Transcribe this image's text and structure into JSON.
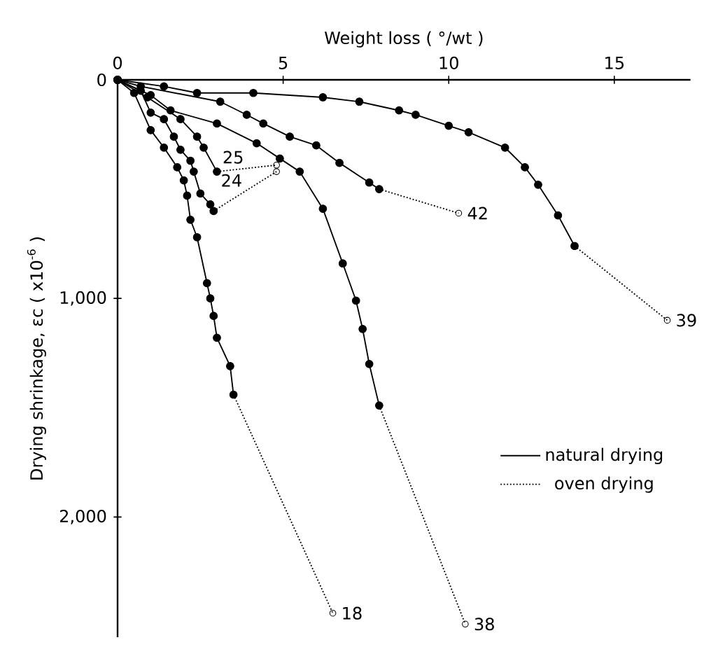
{
  "chart_data": {
    "type": "line",
    "xlabel": "Weight loss ( °/wt )",
    "ylabel": "Drying shrinkage, εc ( x10$^{-6}$ )",
    "xlim": [
      0,
      17.3
    ],
    "ylim": [
      2550,
      0
    ],
    "xticks": [
      0,
      5,
      10,
      15
    ],
    "yticks": [
      0,
      {
        "value": 1000,
        "label": "1,000"
      },
      {
        "value": 2000,
        "label": "2,000"
      }
    ],
    "grid": false,
    "legend": "right",
    "series": [
      {
        "name": "natural drying",
        "color": "#000000",
        "line_style": "solid",
        "marker": "circle",
        "x": [
          0,
          1.4,
          2.4,
          4.1,
          6.2,
          7.3,
          8.5,
          9.0,
          10.0,
          10.6,
          11.7,
          12.3,
          12.7,
          13.3,
          13.8
        ],
        "values": [
          0,
          30,
          60,
          60,
          80,
          100,
          140,
          160,
          210,
          240,
          310,
          400,
          480,
          620,
          760
        ]
      },
      {
        "name": "oven drying",
        "color": "#000000",
        "line_style": "dotted",
        "marker": "circle",
        "x": [
          13.8,
          16.6
        ],
        "values": [
          760,
          1100
        ]
      },
      {
        "color": "#000000",
        "line_style": "solid",
        "marker": "circle",
        "x": [
          0,
          0.7,
          3.1,
          3.9,
          4.4,
          5.2,
          6.0,
          6.7,
          7.6,
          7.9
        ],
        "values": [
          0,
          30,
          100,
          160,
          200,
          260,
          300,
          380,
          470,
          500
        ]
      },
      {
        "color": "#000000",
        "line_style": "dotted",
        "marker": "circle",
        "x": [
          7.9,
          10.3
        ],
        "values": [
          500,
          610
        ]
      },
      {
        "color": "#000000",
        "line_style": "solid",
        "marker": "circle",
        "x": [
          0,
          1.0,
          1.6,
          3.0,
          4.2,
          4.9,
          5.5,
          6.2,
          6.8,
          7.2,
          7.4,
          7.6,
          7.9
        ],
        "values": [
          0,
          70,
          140,
          200,
          290,
          360,
          420,
          590,
          840,
          1010,
          1140,
          1300,
          1490
        ]
      },
      {
        "color": "#000000",
        "line_style": "dotted",
        "marker": "circle",
        "x": [
          7.9,
          10.5
        ],
        "values": [
          1490,
          2490
        ]
      },
      {
        "color": "#000000",
        "line_style": "solid",
        "marker": "circle",
        "x": [
          0,
          0.9,
          1.9,
          2.4,
          2.6,
          3.0
        ],
        "values": [
          0,
          80,
          180,
          260,
          310,
          420
        ]
      },
      {
        "color": "#000000",
        "line_style": "dotted",
        "marker": "circle",
        "x": [
          3.0,
          4.8
        ],
        "values": [
          420,
          390
        ]
      },
      {
        "color": "#000000",
        "line_style": "solid",
        "marker": "circle",
        "x": [
          0,
          0.7,
          1.0,
          1.4,
          1.7,
          1.9,
          2.2,
          2.3,
          2.5,
          2.8,
          2.9
        ],
        "values": [
          0,
          50,
          150,
          180,
          260,
          320,
          370,
          420,
          520,
          570,
          600
        ]
      },
      {
        "color": "#000000",
        "line_style": "dotted",
        "marker": "circle",
        "x": [
          2.9,
          4.8
        ],
        "values": [
          600,
          420
        ]
      },
      {
        "color": "#000000",
        "line_style": "solid",
        "marker": "circle",
        "x": [
          0,
          0.5,
          1.0,
          1.4,
          1.8,
          2.0,
          2.1,
          2.2,
          2.4,
          2.7,
          2.8,
          2.9,
          3.0,
          3.4,
          3.5
        ],
        "values": [
          0,
          60,
          230,
          310,
          400,
          460,
          530,
          640,
          720,
          930,
          1000,
          1080,
          1180,
          1310,
          1440
        ]
      },
      {
        "color": "#000000",
        "line_style": "dotted",
        "marker": "circle",
        "x": [
          3.5,
          6.5
        ],
        "values": [
          1440,
          2440
        ]
      }
    ],
    "annotations": [
      {
        "text": "39",
        "x": 16.6,
        "y": 1100
      },
      {
        "text": "42",
        "x": 10.3,
        "y": 610
      },
      {
        "text": "38",
        "x": 10.5,
        "y": 2490
      },
      {
        "text": "25",
        "x": 3.9,
        "y": 405
      },
      {
        "text": "24",
        "x": 3.85,
        "y": 510
      },
      {
        "text": "18",
        "x": 6.5,
        "y": 2440
      }
    ]
  }
}
